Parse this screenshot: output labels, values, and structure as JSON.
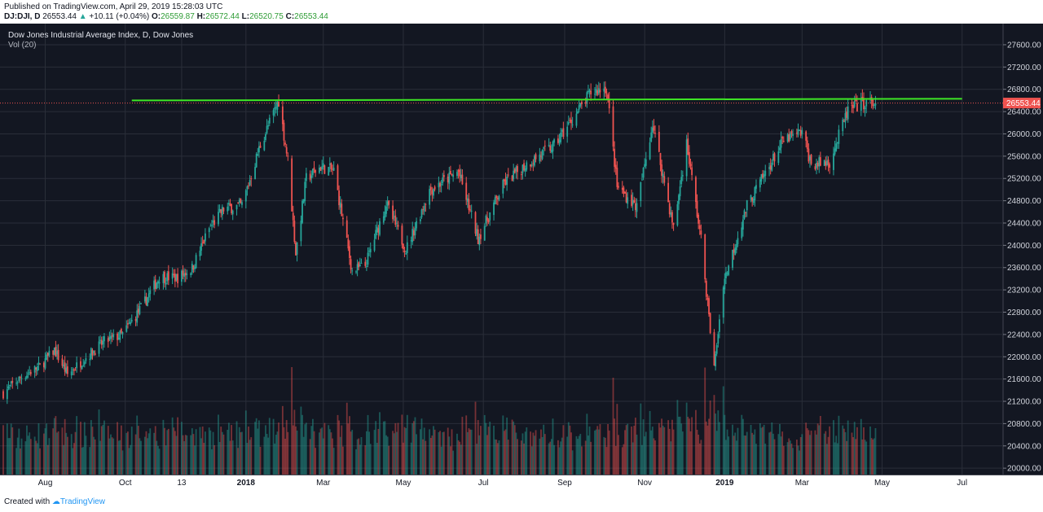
{
  "header": {
    "published": "Published on TradingView.com, April 29, 2019 15:28:03 UTC",
    "symbol": "DJ:DJI, D",
    "last": "26553.44",
    "arrow": "▲",
    "change": "+10.11 (+0.04%)",
    "o_label": "O:",
    "o_value": "26559.87",
    "h_label": "H:",
    "h_value": "26572.44",
    "l_label": "L:",
    "l_value": "26520.75",
    "c_label": "C:",
    "c_value": "26553.44"
  },
  "footer": {
    "created_with": "Created with",
    "brand": "TradingView"
  },
  "colors": {
    "background": "#131722",
    "up": "#26a69a",
    "down": "#ef5350",
    "trendline": "#3ee625",
    "price_label": "#ef5350"
  },
  "chart_data": {
    "type": "candlestick",
    "title": "Dow Jones Industrial Average Index, D, Dow Jones",
    "volume_label": "Vol (20)",
    "last_price": 26553.44,
    "last_price_label": "26553.44",
    "ylim": [
      19900,
      27950
    ],
    "y_ticks": [
      20000,
      20400,
      20800,
      21200,
      21600,
      22000,
      22400,
      22800,
      23200,
      23600,
      24000,
      24400,
      24800,
      25200,
      25600,
      26000,
      26400,
      26800,
      27200,
      27600
    ],
    "y_tick_labels": [
      "20000.00",
      "20400.00",
      "20800.00",
      "21200.00",
      "21600.00",
      "22000.00",
      "22400.00",
      "22800.00",
      "23200.00",
      "23600.00",
      "24000.00",
      "24400.00",
      "24800.00",
      "25200.00",
      "25600.00",
      "26000.00",
      "26400.00",
      "26800.00",
      "27200.00",
      "27600.00"
    ],
    "x_start": "2017-06-30",
    "x_end": "2019-07-31",
    "x_ticks": [
      {
        "date": "2017-08-01",
        "label": "Aug",
        "bold": false
      },
      {
        "date": "2017-10-01",
        "label": "Oct",
        "bold": false
      },
      {
        "date": "2017-11-13",
        "label": "13",
        "bold": false
      },
      {
        "date": "2018-01-01",
        "label": "2018",
        "bold": true
      },
      {
        "date": "2018-03-01",
        "label": "Mar",
        "bold": false
      },
      {
        "date": "2018-05-01",
        "label": "May",
        "bold": false
      },
      {
        "date": "2018-07-01",
        "label": "Jul",
        "bold": false
      },
      {
        "date": "2018-09-01",
        "label": "Sep",
        "bold": false
      },
      {
        "date": "2018-11-01",
        "label": "Nov",
        "bold": false
      },
      {
        "date": "2019-01-01",
        "label": "2019",
        "bold": true
      },
      {
        "date": "2019-03-01",
        "label": "Mar",
        "bold": false
      },
      {
        "date": "2019-05-01",
        "label": "May",
        "bold": false
      },
      {
        "date": "2019-07-01",
        "label": "Jul",
        "bold": false
      }
    ],
    "trendline": {
      "start": [
        "2017-10-06",
        26600
      ],
      "end": [
        "2019-07-01",
        26630
      ]
    },
    "close_path": [
      [
        "2017-06-30",
        21350
      ],
      [
        "2017-07-14",
        21640
      ],
      [
        "2017-07-28",
        21830
      ],
      [
        "2017-08-08",
        22120
      ],
      [
        "2017-08-18",
        21680
      ],
      [
        "2017-09-01",
        21990
      ],
      [
        "2017-09-15",
        22270
      ],
      [
        "2017-09-29",
        22400
      ],
      [
        "2017-10-13",
        22870
      ],
      [
        "2017-10-27",
        23430
      ],
      [
        "2017-11-10",
        23420
      ],
      [
        "2017-11-21",
        23590
      ],
      [
        "2017-12-04",
        24300
      ],
      [
        "2017-12-15",
        24650
      ],
      [
        "2017-12-29",
        24720
      ],
      [
        "2018-01-12",
        25800
      ],
      [
        "2018-01-26",
        26600
      ],
      [
        "2018-02-02",
        25520
      ],
      [
        "2018-02-08",
        23860
      ],
      [
        "2018-02-16",
        25200
      ],
      [
        "2018-02-27",
        25410
      ],
      [
        "2018-03-09",
        25340
      ],
      [
        "2018-03-23",
        23530
      ],
      [
        "2018-04-02",
        23640
      ],
      [
        "2018-04-18",
        24750
      ],
      [
        "2018-05-03",
        23920
      ],
      [
        "2018-05-21",
        24990
      ],
      [
        "2018-06-12",
        25320
      ],
      [
        "2018-06-27",
        24120
      ],
      [
        "2018-07-17",
        25120
      ],
      [
        "2018-08-03",
        25460
      ],
      [
        "2018-08-24",
        25790
      ],
      [
        "2018-09-21",
        26740
      ],
      [
        "2018-10-03",
        26830
      ],
      [
        "2018-10-11",
        25050
      ],
      [
        "2018-10-26",
        24690
      ],
      [
        "2018-11-07",
        26190
      ],
      [
        "2018-11-23",
        24300
      ],
      [
        "2018-12-03",
        25830
      ],
      [
        "2018-12-14",
        24100
      ],
      [
        "2018-12-24",
        21790
      ],
      [
        "2018-12-31",
        23330
      ],
      [
        "2019-01-18",
        24710
      ],
      [
        "2019-02-15",
        25880
      ],
      [
        "2019-03-01",
        26030
      ],
      [
        "2019-03-08",
        25450
      ],
      [
        "2019-03-22",
        25500
      ],
      [
        "2019-04-05",
        26420
      ],
      [
        "2019-04-18",
        26560
      ],
      [
        "2019-04-26",
        26540
      ]
    ]
  }
}
